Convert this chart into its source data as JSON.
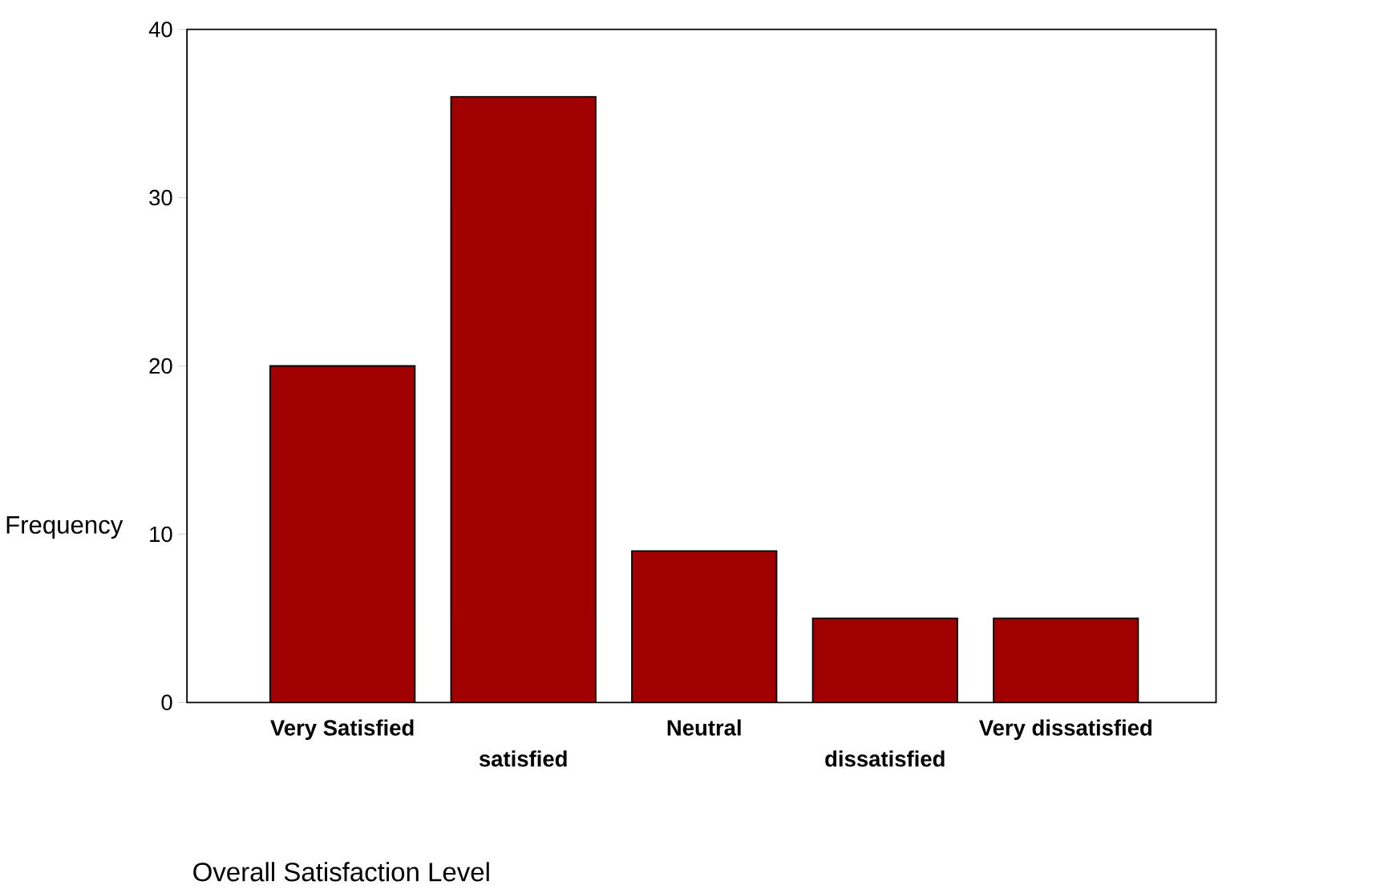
{
  "chart_data": {
    "type": "bar",
    "xlabel": "Overall Satisfaction Level",
    "ylabel": "Frequency",
    "categories": [
      "Very Satisfied",
      "satisfied",
      "Neutral",
      "dissatisfied",
      "Very dissatisfied"
    ],
    "values": [
      20,
      36,
      9,
      5,
      5
    ],
    "color": "#a00000",
    "ylim": [
      0,
      40
    ],
    "yticks": [
      0,
      10,
      20,
      30,
      40
    ]
  }
}
